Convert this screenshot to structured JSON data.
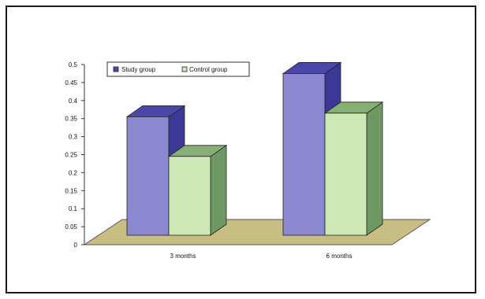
{
  "chart_data": {
    "type": "bar",
    "style": "3d-clustered",
    "categories": [
      "3 months",
      "6 months"
    ],
    "series": [
      {
        "name": "Study group",
        "values": [
          0.355,
          0.475
        ],
        "color": "#8b88cf",
        "side_color": "#3c3996",
        "top_color": "#4b47a8"
      },
      {
        "name": "Control group",
        "values": [
          0.245,
          0.365
        ],
        "color": "#cce8b5",
        "side_color": "#6f9964",
        "top_color": "#86ae75"
      }
    ],
    "yticks": [
      "0",
      "0.05",
      "0.1",
      "0.15",
      "0.2",
      "0.25",
      "0.3",
      "0.35",
      "0.4",
      "0.45",
      "0.5"
    ],
    "ylim": [
      0,
      0.5
    ],
    "grid": false,
    "legend_position": "top-left",
    "floor_color": "#c8bd82"
  }
}
